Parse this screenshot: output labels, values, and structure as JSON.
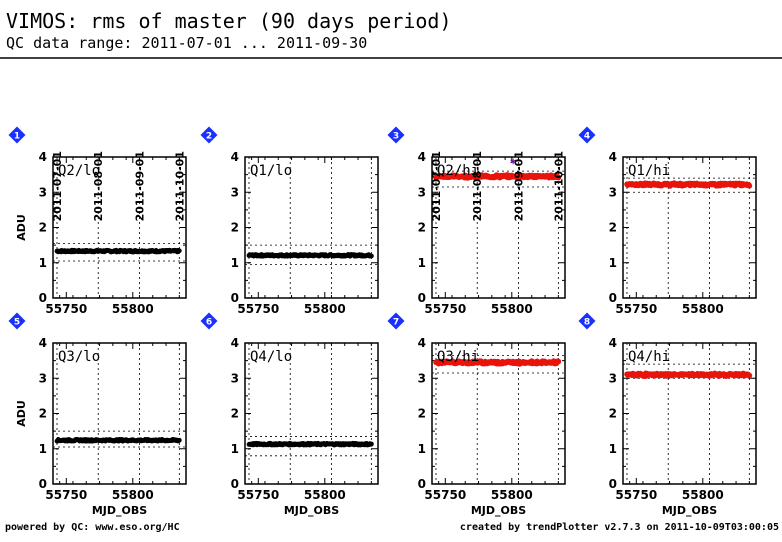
{
  "title": "VIMOS: rms of master (90 days period)",
  "subtitle": "QC data range: 2011-07-01 ... 2011-09-30",
  "footer_left": "powered by QC: www.eso.org/HC",
  "footer_right": "created by trendPlotter v2.7.3 on 2011-10-09T03:00:05",
  "colors": {
    "lo": "#000000",
    "hi": "#e8140c",
    "badge": "#1a30ff",
    "outlier": "#6a0dad"
  },
  "chart_data": {
    "type": "scatter",
    "xlabel": "MJD_OBS",
    "ylabel": "ADU",
    "xlim": [
      55740,
      55840
    ],
    "ylim": [
      0,
      4
    ],
    "xticks": [
      55750,
      55800
    ],
    "yticks": [
      0,
      1,
      2,
      3,
      4
    ],
    "date_ticks": [
      {
        "label": "2011-07-01",
        "mjd": 55743
      },
      {
        "label": "2011-08-01",
        "mjd": 55774
      },
      {
        "label": "2011-09-01",
        "mjd": 55805
      },
      {
        "label": "2011-10-01",
        "mjd": 55835
      }
    ],
    "panels": [
      {
        "num": "1",
        "name": "Q2/lo",
        "color": "lo",
        "mjd_range": [
          55743,
          55835
        ],
        "level": 1.33,
        "limits": [
          1.05,
          1.55
        ]
      },
      {
        "num": "2",
        "name": "Q1/lo",
        "color": "lo",
        "mjd_range": [
          55743,
          55835
        ],
        "level": 1.21,
        "limits": [
          0.95,
          1.5
        ]
      },
      {
        "num": "3",
        "name": "Q2/hi",
        "color": "hi",
        "mjd_range": [
          55743,
          55835
        ],
        "level": 3.45,
        "limits": [
          3.15,
          3.6
        ],
        "outlier": [
          55801,
          3.82
        ]
      },
      {
        "num": "4",
        "name": "Q1/hi",
        "color": "hi",
        "mjd_range": [
          55743,
          55835
        ],
        "level": 3.22,
        "limits": [
          3.0,
          3.4
        ]
      },
      {
        "num": "5",
        "name": "Q3/lo",
        "color": "lo",
        "mjd_range": [
          55743,
          55835
        ],
        "level": 1.24,
        "limits": [
          1.05,
          1.5
        ]
      },
      {
        "num": "6",
        "name": "Q4/lo",
        "color": "lo",
        "mjd_range": [
          55743,
          55835
        ],
        "level": 1.13,
        "limits": [
          0.8,
          1.35
        ]
      },
      {
        "num": "7",
        "name": "Q3/hi",
        "color": "hi",
        "mjd_range": [
          55743,
          55835
        ],
        "level": 3.45,
        "limits": [
          3.15,
          3.65
        ]
      },
      {
        "num": "8",
        "name": "Q4/hi",
        "color": "hi",
        "mjd_range": [
          55743,
          55835
        ],
        "level": 3.1,
        "limits": [
          3.0,
          3.4
        ]
      }
    ]
  }
}
